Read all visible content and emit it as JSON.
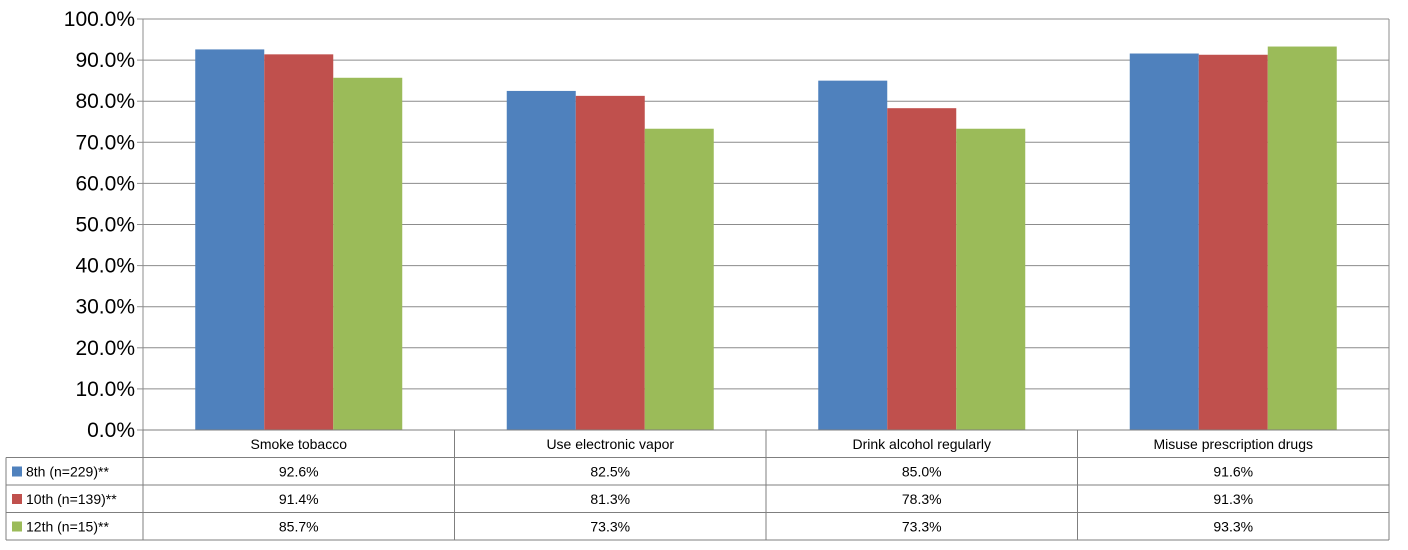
{
  "chart_data": {
    "type": "bar",
    "categories": [
      "Smoke tobacco",
      "Use electronic vapor",
      "Drink alcohol regularly",
      "Misuse prescription drugs"
    ],
    "series": [
      {
        "name": "8th (n=229)**",
        "color": "#4F81BD",
        "values": [
          92.6,
          82.5,
          85.0,
          91.6
        ],
        "labels": [
          "92.6%",
          "82.5%",
          "85.0%",
          "91.6%"
        ]
      },
      {
        "name": "10th (n=139)**",
        "color": "#C0504D",
        "values": [
          91.4,
          81.3,
          78.3,
          91.3
        ],
        "labels": [
          "91.4%",
          "81.3%",
          "78.3%",
          "91.3%"
        ]
      },
      {
        "name": "12th (n=15)**",
        "color": "#9BBB59",
        "values": [
          85.7,
          73.3,
          73.3,
          93.3
        ],
        "labels": [
          "85.7%",
          "73.3%",
          "73.3%",
          "93.3%"
        ]
      }
    ],
    "ylim": [
      0,
      100
    ],
    "yticks": [
      "0.0%",
      "10.0%",
      "20.0%",
      "30.0%",
      "40.0%",
      "50.0%",
      "60.0%",
      "70.0%",
      "80.0%",
      "90.0%",
      "100.0%"
    ],
    "grid": true,
    "legend": "data table"
  }
}
